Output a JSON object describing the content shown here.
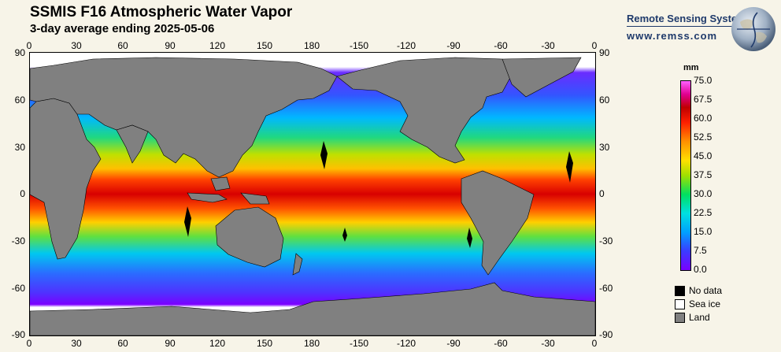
{
  "header": {
    "title": "SSMIS F16 Atmospheric Water Vapor",
    "subtitle": "3-day average ending 2025-05-06"
  },
  "branding": {
    "name": "Remote Sensing Systems",
    "url": "www.remss.com",
    "text_color": "#1f3a6b"
  },
  "axes": {
    "lon_labels": [
      "0",
      "30",
      "60",
      "90",
      "120",
      "150",
      "180",
      "-150",
      "-120",
      "-90",
      "-60",
      "-30",
      "0"
    ],
    "lat_labels": [
      "90",
      "60",
      "30",
      "0",
      "-30",
      "-60",
      "-90"
    ]
  },
  "colorbar": {
    "unit": "mm",
    "labels": [
      "75.0",
      "67.5",
      "60.0",
      "52.5",
      "45.0",
      "37.5",
      "30.0",
      "22.5",
      "15.0",
      "7.5",
      "0.0"
    ]
  },
  "legend": [
    {
      "label": "No data",
      "color": "#000000"
    },
    {
      "label": "Sea ice",
      "color": "#ffffff"
    },
    {
      "label": "Land",
      "color": "#808080"
    }
  ],
  "colors": {
    "background": "#f7f4e8",
    "land": "#808080",
    "no_data": "#000000",
    "sea_ice": "#ffffff"
  }
}
